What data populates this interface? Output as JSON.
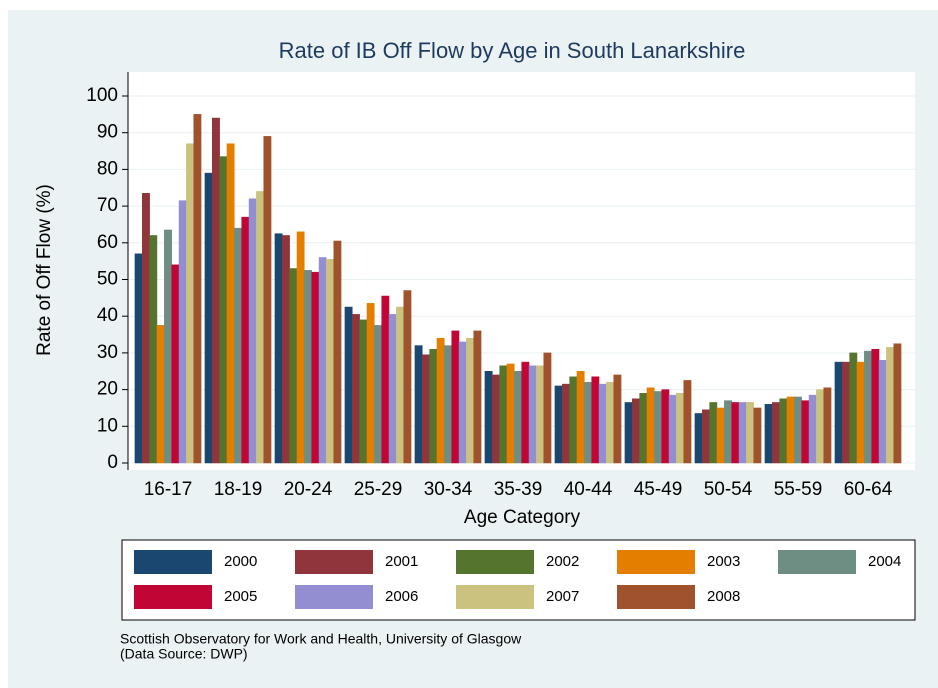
{
  "chart_data": {
    "type": "bar",
    "title": "Rate of IB Off Flow by Age in South Lanarkshire",
    "x_label": "Age Category",
    "y_label": "Rate of Off Flow (%)",
    "note": [
      "Scottish Observatory for Work and Health, University of Glasgow",
      "(Data Source: DWP)"
    ],
    "categories": [
      "16-17",
      "18-19",
      "20-24",
      "25-29",
      "30-34",
      "35-39",
      "40-44",
      "45-49",
      "50-54",
      "55-59",
      "60-64"
    ],
    "series": [
      {
        "name": "2000",
        "color": "#1a476f",
        "values": [
          57,
          79,
          62.5,
          42.5,
          32,
          25,
          21,
          16.5,
          13.5,
          16,
          27.5
        ]
      },
      {
        "name": "2001",
        "color": "#90353b",
        "values": [
          73.5,
          94,
          62,
          40.5,
          29.5,
          24,
          21.5,
          17.5,
          14.5,
          16.5,
          27.5
        ]
      },
      {
        "name": "2002",
        "color": "#55752f",
        "values": [
          62,
          83.5,
          53,
          39,
          31,
          26.5,
          23.5,
          19,
          16.5,
          17.5,
          30
        ]
      },
      {
        "name": "2003",
        "color": "#e37e00",
        "values": [
          37.5,
          87,
          63,
          43.5,
          34,
          27,
          25,
          20.5,
          15,
          18,
          27.5
        ]
      },
      {
        "name": "2004",
        "color": "#6e8e84",
        "values": [
          63.5,
          64,
          52.5,
          37.5,
          32,
          25,
          22,
          19.5,
          17,
          18,
          30.5
        ]
      },
      {
        "name": "2005",
        "color": "#c10534",
        "values": [
          54,
          67,
          52,
          45.5,
          36,
          27.5,
          23.5,
          20,
          16.5,
          17,
          31
        ]
      },
      {
        "name": "2006",
        "color": "#938dd2",
        "values": [
          71.5,
          72,
          56,
          40.5,
          33,
          26.5,
          21.5,
          18.5,
          16.5,
          18.5,
          28
        ]
      },
      {
        "name": "2007",
        "color": "#cac27e",
        "values": [
          87,
          74,
          55.5,
          42.5,
          34,
          26.5,
          22,
          19,
          16.5,
          20,
          31.5
        ]
      },
      {
        "name": "2008",
        "color": "#a0522d",
        "values": [
          95,
          89,
          60.5,
          47,
          36,
          30,
          24,
          22.5,
          15,
          20.5,
          32.5
        ]
      }
    ],
    "ylim": [
      0,
      100
    ],
    "yticks": [
      0,
      10,
      20,
      30,
      40,
      50,
      60,
      70,
      80,
      90,
      100
    ],
    "grid": true
  }
}
